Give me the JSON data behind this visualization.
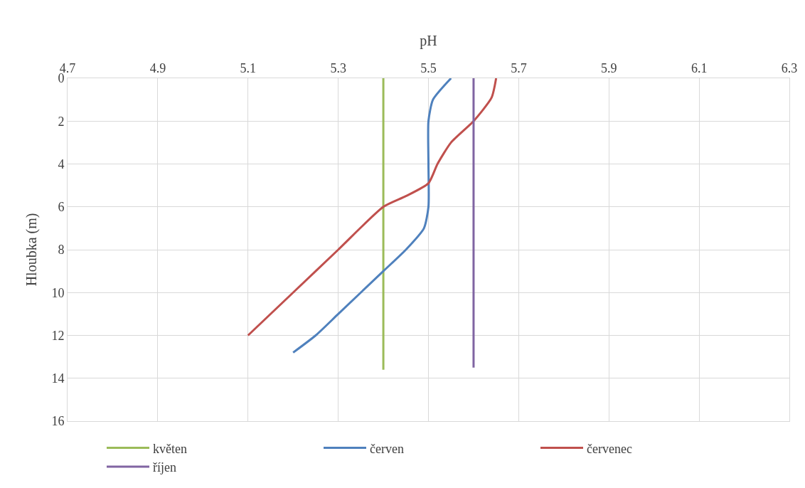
{
  "chart_data": {
    "type": "line",
    "xlabel": "pH",
    "ylabel": "Hloubka (m)",
    "xlim": [
      4.7,
      6.3
    ],
    "xticks": [
      4.7,
      4.9,
      5.1,
      5.3,
      5.5,
      5.7,
      5.9,
      6.1,
      6.3
    ],
    "ylim": [
      16,
      0
    ],
    "yticks": [
      0,
      2,
      4,
      6,
      8,
      10,
      12,
      14,
      16
    ],
    "grid": true,
    "legend": "bottom",
    "marker": "none",
    "line_style": "solid",
    "series": [
      {
        "name": "květen",
        "color": "#9bbb59",
        "x": [
          5.4,
          5.4
        ],
        "values": [
          0,
          13.6
        ]
      },
      {
        "name": "červen",
        "color": "#4f81bd",
        "x": [
          5.55,
          5.51,
          5.5,
          5.5,
          5.5,
          5.49,
          5.45,
          5.4,
          5.3,
          5.25,
          5.2
        ],
        "values": [
          0,
          1,
          2,
          4,
          6,
          7,
          8,
          9,
          11,
          12,
          12.8
        ]
      },
      {
        "name": "červenec",
        "color": "#c0504d",
        "x": [
          5.65,
          5.64,
          5.6,
          5.55,
          5.52,
          5.5,
          5.45,
          5.4,
          5.3,
          5.2,
          5.1
        ],
        "values": [
          0,
          0.9,
          2,
          3,
          4,
          4.9,
          5.5,
          6,
          8,
          10,
          12
        ]
      },
      {
        "name": "říjen",
        "color": "#8064a2",
        "x": [
          5.6,
          5.6
        ],
        "values": [
          0,
          13.5
        ]
      }
    ]
  }
}
